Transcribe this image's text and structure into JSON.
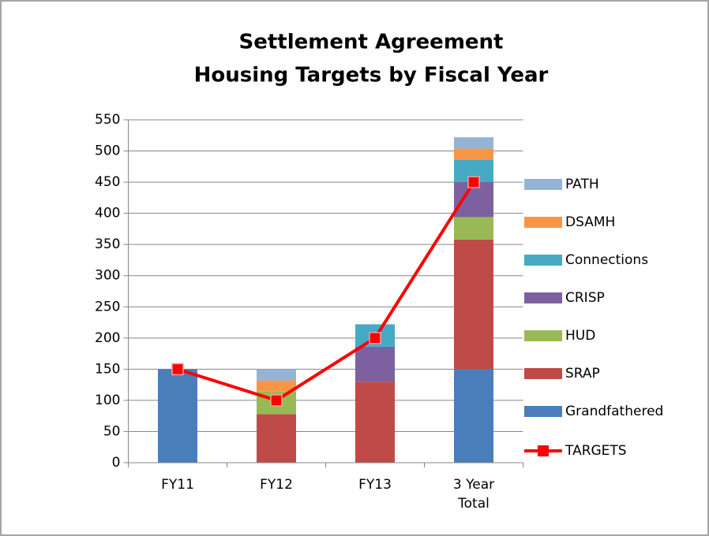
{
  "chart_data": {
    "type": "bar",
    "stacked": true,
    "title": [
      "Settlement Agreement",
      "Housing Targets by Fiscal Year"
    ],
    "categories": [
      "FY11",
      "FY12",
      "FY13",
      "3 Year Total"
    ],
    "series": [
      {
        "name": "Grandfathered",
        "color": "#4a7ebb",
        "values": [
          150,
          0,
          0,
          150
        ]
      },
      {
        "name": "SRAP",
        "color": "#be4b48",
        "values": [
          0,
          78,
          130,
          208
        ]
      },
      {
        "name": "HUD",
        "color": "#98b954",
        "values": [
          0,
          36,
          0,
          36
        ]
      },
      {
        "name": "CRISP",
        "color": "#7d60a0",
        "values": [
          0,
          0,
          56,
          56
        ]
      },
      {
        "name": "Connections",
        "color": "#46aac5",
        "values": [
          0,
          0,
          36,
          36
        ]
      },
      {
        "name": "DSAMH",
        "color": "#f79646",
        "values": [
          0,
          18,
          0,
          18
        ]
      },
      {
        "name": "PATH",
        "color": "#95b3d7",
        "values": [
          0,
          18,
          0,
          18
        ]
      },
      {
        "name": "TARGETS",
        "color": "#ff0000",
        "type": "line",
        "values": [
          150,
          100,
          200,
          450
        ]
      }
    ],
    "ylim": [
      0,
      550
    ],
    "yticks": [
      0,
      50,
      100,
      150,
      200,
      250,
      300,
      350,
      400,
      450,
      500,
      550
    ],
    "grid": true,
    "legend": "right"
  }
}
